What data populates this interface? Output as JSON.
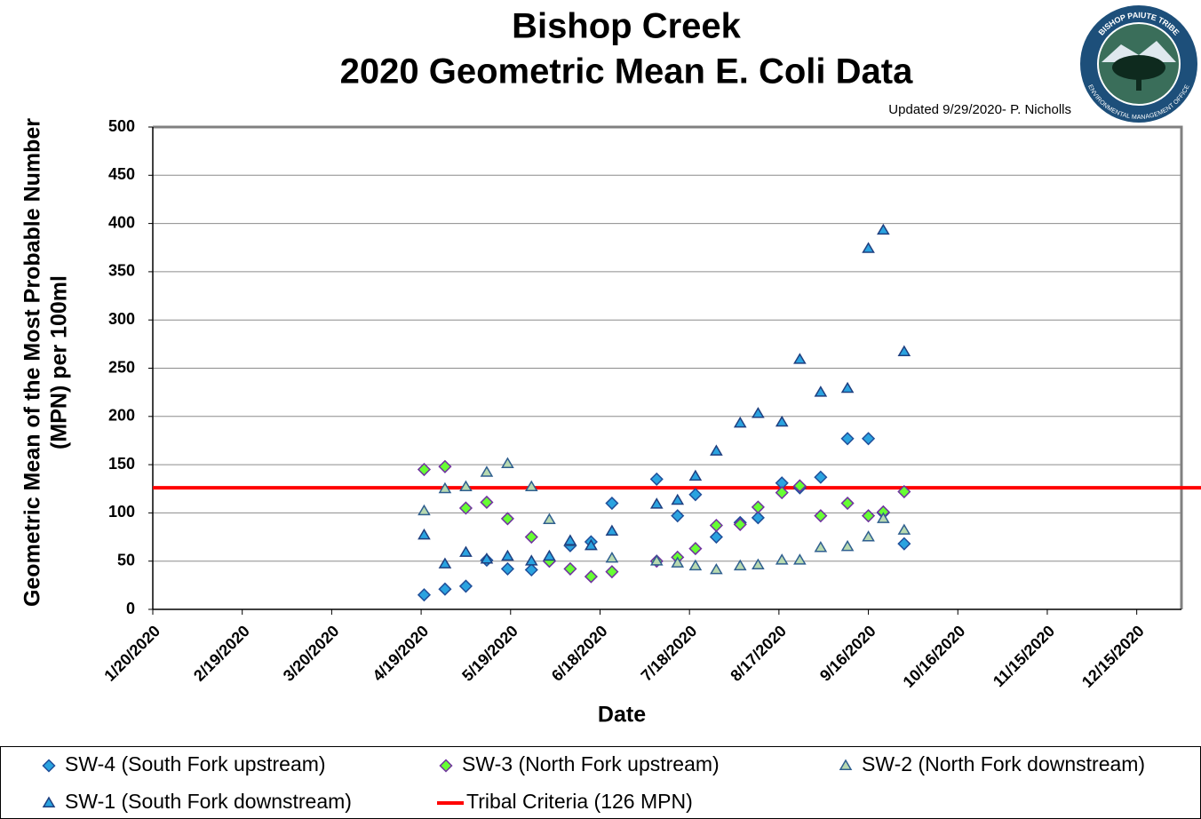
{
  "chart_data": {
    "type": "scatter",
    "title": "Bishop Creek",
    "subtitle": "2020 Geometric Mean E. Coli Data",
    "annotation": "Updated 9/29/2020- P. Nicholls",
    "logo_texts": [
      "BISHOP PAIUTE TRIBE",
      "ENVIRONMENTAL MANAGEMENT OFFICE"
    ],
    "x_label": "Date",
    "y_label": [
      "Geometric Mean of the Most Probable Number",
      "(MPN) per 100ml"
    ],
    "xlim": [
      "1/20/2020",
      "12/30/2020"
    ],
    "xticks": [
      "1/20/2020",
      "2/19/2020",
      "3/20/2020",
      "4/19/2020",
      "5/19/2020",
      "6/18/2020",
      "7/18/2020",
      "8/17/2020",
      "9/16/2020",
      "10/16/2020",
      "11/15/2020",
      "12/15/2020"
    ],
    "ylim": [
      0,
      500
    ],
    "yticks": [
      0,
      50,
      100,
      150,
      200,
      250,
      300,
      350,
      400,
      450,
      500
    ],
    "grid": true,
    "x": [
      "4/20/2020",
      "4/27/2020",
      "5/4/2020",
      "5/11/2020",
      "5/18/2020",
      "5/26/2020",
      "6/1/2020",
      "6/8/2020",
      "6/15/2020",
      "6/22/2020",
      "7/7/2020",
      "7/14/2020",
      "7/20/2020",
      "7/27/2020",
      "8/4/2020",
      "8/10/2020",
      "8/18/2020",
      "8/24/2020",
      "8/31/2020",
      "9/9/2020",
      "9/16/2020",
      "9/21/2020",
      "9/28/2020"
    ],
    "series": [
      {
        "name": "SW-4 (South Fork upstream)",
        "marker": "diamond",
        "color": "#2aa3e0",
        "edge_color": "#1f4e99",
        "values": [
          15,
          21,
          24,
          51,
          42,
          41,
          50,
          66,
          70,
          110,
          135,
          97,
          119,
          75,
          90,
          95,
          131,
          126,
          137,
          177,
          177,
          100,
          68
        ]
      },
      {
        "name": "SW-3 (North Fork upstream)",
        "marker": "diamond",
        "color": "#66ff33",
        "edge_color": "#7030a0",
        "values": [
          145,
          148,
          105,
          111,
          94,
          75,
          50,
          42,
          34,
          39,
          50,
          54,
          63,
          87,
          88,
          106,
          121,
          128,
          97,
          110,
          97,
          101,
          122
        ]
      },
      {
        "name": "SW-2 (North Fork downstream)",
        "marker": "triangle",
        "color": "#b7d9b0",
        "edge_color": "#2f5f8f",
        "values": [
          102,
          125,
          127,
          142,
          151,
          127,
          93,
          70,
          66,
          53,
          50,
          48,
          45,
          41,
          45,
          46,
          51,
          51,
          64,
          65,
          75,
          94,
          82
        ]
      },
      {
        "name": "SW-1 (South Fork downstream)",
        "marker": "triangle",
        "color": "#2aa3e0",
        "edge_color": "#1f3f7f",
        "values": [
          77,
          47,
          59,
          52,
          55,
          50,
          55,
          71,
          66,
          81,
          109,
          113,
          138,
          164,
          193,
          203,
          194,
          259,
          225,
          229,
          374,
          393,
          267
        ]
      }
    ],
    "reference_line": {
      "name": "Tribal Criteria (126 MPN)",
      "value": 126,
      "color": "#ff0000"
    }
  }
}
